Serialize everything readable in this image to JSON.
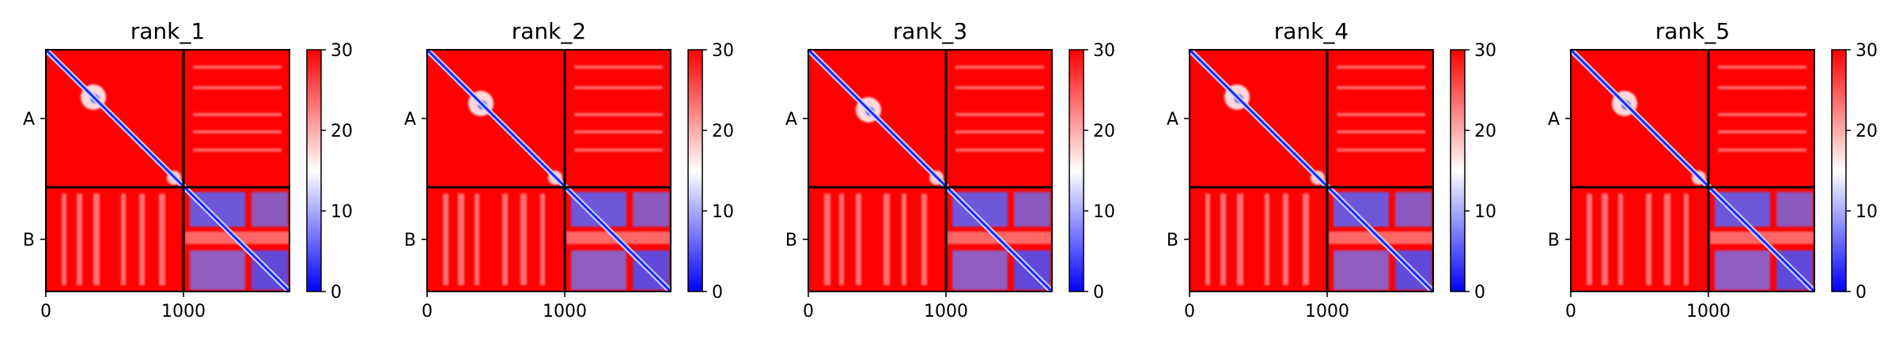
{
  "chart_data": [
    {
      "type": "heatmap",
      "title": "rank_1",
      "chains": [
        "A",
        "B"
      ],
      "x_ticks": [
        "0",
        "1000"
      ],
      "colorbar": {
        "ticks": [
          "0",
          "10",
          "20",
          "30"
        ],
        "range": [
          0,
          30
        ],
        "colors": [
          "#0000ff",
          "#ffffff",
          "#ff0000"
        ]
      }
    },
    {
      "type": "heatmap",
      "title": "rank_2",
      "chains": [
        "A",
        "B"
      ],
      "x_ticks": [
        "0",
        "1000"
      ],
      "colorbar": {
        "ticks": [
          "0",
          "10",
          "20",
          "30"
        ],
        "range": [
          0,
          30
        ],
        "colors": [
          "#0000ff",
          "#ffffff",
          "#ff0000"
        ]
      }
    },
    {
      "type": "heatmap",
      "title": "rank_3",
      "chains": [
        "A",
        "B"
      ],
      "x_ticks": [
        "0",
        "1000"
      ],
      "colorbar": {
        "ticks": [
          "0",
          "10",
          "20",
          "30"
        ],
        "range": [
          0,
          30
        ],
        "colors": [
          "#0000ff",
          "#ffffff",
          "#ff0000"
        ]
      }
    },
    {
      "type": "heatmap",
      "title": "rank_4",
      "chains": [
        "A",
        "B"
      ],
      "x_ticks": [
        "0",
        "1000"
      ],
      "colorbar": {
        "ticks": [
          "0",
          "10",
          "20",
          "30"
        ],
        "range": [
          0,
          30
        ],
        "colors": [
          "#0000ff",
          "#ffffff",
          "#ff0000"
        ]
      }
    },
    {
      "type": "heatmap",
      "title": "rank_5",
      "chains": [
        "A",
        "B"
      ],
      "x_ticks": [
        "0",
        "1000"
      ],
      "colorbar": {
        "ticks": [
          "0",
          "10",
          "20",
          "30"
        ],
        "range": [
          0,
          30
        ],
        "colors": [
          "#0000ff",
          "#ffffff",
          "#ff0000"
        ]
      }
    }
  ]
}
